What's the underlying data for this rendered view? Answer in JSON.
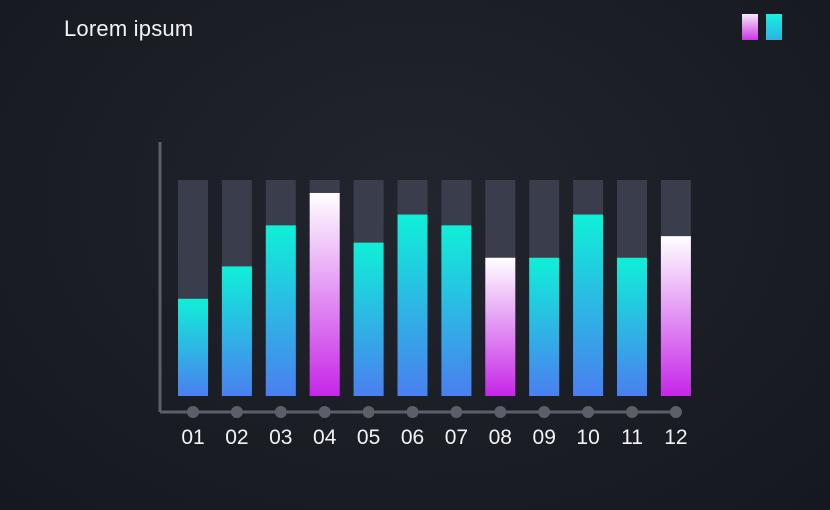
{
  "header": {
    "title": "Lorem ipsum"
  },
  "legend": [
    {
      "gradient_top": "#f4e8fb",
      "gradient_bottom": "#cf35e6"
    },
    {
      "gradient_top": "#19f0dc",
      "gradient_bottom": "#2ab4e6"
    }
  ],
  "chart_data": {
    "type": "bar",
    "title": "Lorem ipsum",
    "xlabel": "",
    "ylabel": "",
    "ylim": [
      0,
      100
    ],
    "grid": false,
    "legend_position": "top-right",
    "categories": [
      "01",
      "02",
      "03",
      "04",
      "05",
      "06",
      "07",
      "08",
      "09",
      "10",
      "11",
      "12"
    ],
    "values": [
      45,
      60,
      79,
      94,
      71,
      84,
      79,
      64,
      64,
      84,
      64,
      74
    ],
    "track_value": 100,
    "highlight": [
      false,
      false,
      false,
      true,
      false,
      false,
      false,
      true,
      false,
      false,
      false,
      true
    ],
    "colors": {
      "track": "#3a3d4c",
      "teal_top": "#0ff0d8",
      "teal_bottom": "#4a7ff0",
      "pink_top": "#ffffff",
      "pink_bottom": "#c626e8",
      "axis": "#5c5f6a"
    }
  }
}
